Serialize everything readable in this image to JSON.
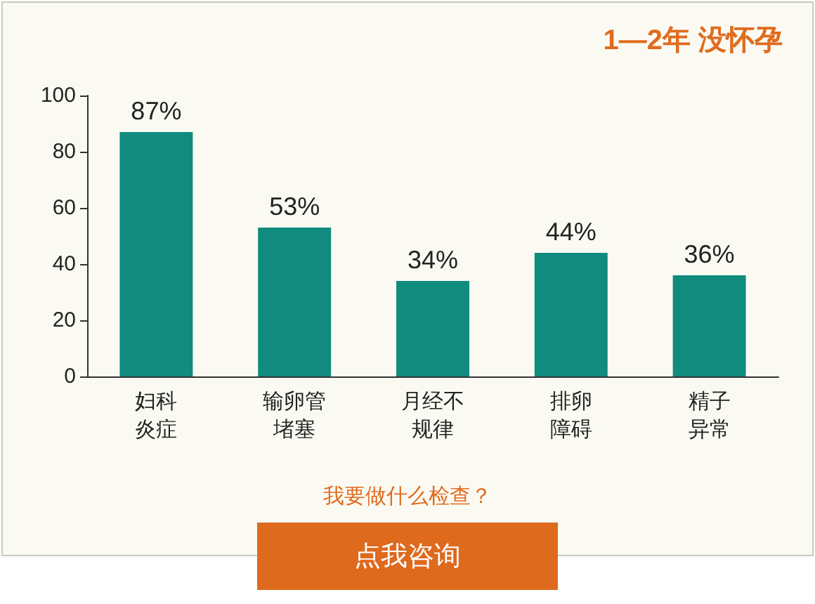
{
  "chart_data": {
    "type": "bar",
    "title": "1—2年 没怀孕",
    "categories": [
      "妇科炎症",
      "输卵管堵塞",
      "月经不规律",
      "排卵障碍",
      "精子异常"
    ],
    "values": [
      87,
      53,
      34,
      44,
      36
    ],
    "value_labels": [
      "87%",
      "53%",
      "34%",
      "44%",
      "36%"
    ],
    "color": "#128b7f",
    "ylim": [
      0,
      100
    ],
    "yticks": [
      0,
      20,
      40,
      60,
      80,
      100
    ],
    "grid": false,
    "annotations": [
      "我要做什么检查？",
      "点我咨询"
    ]
  }
}
